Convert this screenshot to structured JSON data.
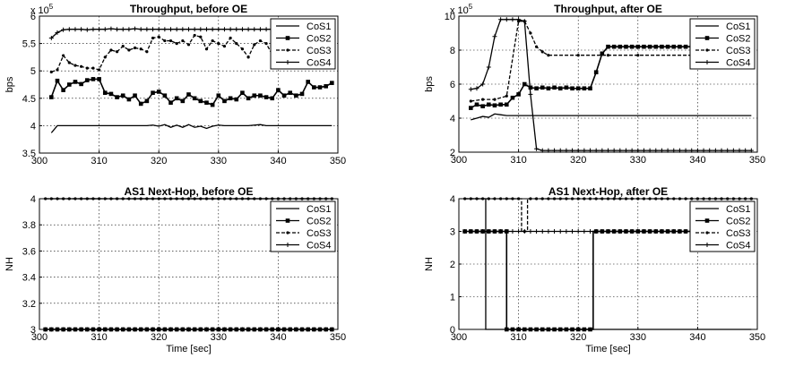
{
  "chart_data": [
    {
      "type": "line",
      "title": "Throughput, before OE",
      "xlabel": "",
      "ylabel": "bps",
      "exponent_label": "x 10",
      "exponent_power": "5",
      "xlim": [
        300,
        350
      ],
      "ylim": [
        3.5,
        6
      ],
      "xticks": [
        300,
        310,
        320,
        330,
        340,
        350
      ],
      "yticks": [
        3.5,
        4,
        4.5,
        5,
        5.5,
        6
      ],
      "xtick_labels": [
        "300",
        "310",
        "320",
        "330",
        "340",
        "350"
      ],
      "ytick_labels": [
        "3.5",
        "4",
        "4.5",
        "5",
        "5.5",
        "6"
      ],
      "grid": true,
      "legend": "top-right",
      "series": [
        {
          "name": "CoS1",
          "marker": "none",
          "dash": "solid",
          "x": [
            302,
            303,
            305,
            310,
            318,
            319,
            320,
            321,
            322,
            323,
            324,
            325,
            326,
            327,
            328,
            329,
            330,
            331,
            335,
            337,
            338,
            339,
            349
          ],
          "y": [
            3.87,
            4.0,
            4.0,
            4.0,
            4.0,
            4.01,
            3.99,
            4.02,
            3.97,
            4.01,
            3.97,
            4.02,
            3.97,
            3.99,
            3.95,
            3.99,
            4.01,
            4.0,
            4.0,
            4.02,
            4.0,
            4.0,
            4.0
          ]
        },
        {
          "name": "CoS2",
          "marker": "square",
          "dash": "solid",
          "x": [
            302,
            303,
            304,
            305,
            306,
            307,
            308,
            309,
            310,
            311,
            312,
            313,
            314,
            315,
            316,
            317,
            318,
            319,
            320,
            321,
            322,
            323,
            324,
            325,
            326,
            327,
            328,
            329,
            330,
            331,
            332,
            333,
            334,
            335,
            336,
            337,
            338,
            339,
            340,
            341,
            342,
            343,
            344,
            345,
            346,
            347,
            348,
            349
          ],
          "y": [
            4.52,
            4.82,
            4.65,
            4.75,
            4.8,
            4.76,
            4.83,
            4.85,
            4.85,
            4.6,
            4.58,
            4.52,
            4.55,
            4.48,
            4.55,
            4.4,
            4.45,
            4.6,
            4.62,
            4.55,
            4.42,
            4.5,
            4.45,
            4.57,
            4.5,
            4.45,
            4.42,
            4.38,
            4.55,
            4.45,
            4.5,
            4.48,
            4.6,
            4.5,
            4.55,
            4.55,
            4.52,
            4.5,
            4.65,
            4.55,
            4.6,
            4.55,
            4.58,
            4.8,
            4.7,
            4.7,
            4.72,
            4.78
          ]
        },
        {
          "name": "CoS3",
          "marker": "dot",
          "dash": "dashed",
          "x": [
            302,
            303,
            304,
            305,
            306,
            307,
            308,
            309,
            310,
            311,
            312,
            313,
            314,
            315,
            316,
            317,
            318,
            319,
            320,
            321,
            322,
            323,
            324,
            325,
            326,
            327,
            328,
            329,
            330,
            331,
            332,
            333,
            334,
            335,
            336,
            337,
            338,
            339,
            340
          ],
          "y": [
            4.98,
            5.02,
            5.28,
            5.15,
            5.1,
            5.08,
            5.05,
            5.05,
            5.02,
            5.25,
            5.38,
            5.35,
            5.45,
            5.38,
            5.42,
            5.4,
            5.35,
            5.6,
            5.62,
            5.55,
            5.55,
            5.5,
            5.55,
            5.48,
            5.65,
            5.62,
            5.4,
            5.55,
            5.5,
            5.45,
            5.6,
            5.5,
            5.4,
            5.25,
            5.48,
            5.55,
            5.5,
            5.3,
            5.4
          ]
        },
        {
          "name": "CoS4",
          "marker": "plus",
          "dash": "solid",
          "x": [
            302,
            303,
            304,
            305,
            306,
            307,
            308,
            309,
            310,
            311,
            312,
            313,
            314,
            315,
            316,
            317,
            318,
            319,
            320,
            321,
            322,
            323,
            324,
            325,
            326,
            327,
            328,
            329,
            330,
            331,
            332,
            333,
            334,
            335,
            336,
            337,
            338,
            339,
            340,
            341
          ],
          "y": [
            5.6,
            5.7,
            5.75,
            5.76,
            5.76,
            5.76,
            5.75,
            5.76,
            5.76,
            5.76,
            5.77,
            5.76,
            5.76,
            5.76,
            5.77,
            5.76,
            5.76,
            5.76,
            5.76,
            5.76,
            5.76,
            5.76,
            5.76,
            5.76,
            5.76,
            5.76,
            5.76,
            5.76,
            5.76,
            5.76,
            5.76,
            5.76,
            5.76,
            5.76,
            5.76,
            5.76,
            5.76,
            5.76,
            5.76,
            5.72
          ]
        }
      ]
    },
    {
      "type": "line",
      "title": "Throughput, after OE",
      "xlabel": "",
      "ylabel": "bps",
      "exponent_label": "x 10",
      "exponent_power": "5",
      "xlim": [
        300,
        350
      ],
      "ylim": [
        2,
        10
      ],
      "xticks": [
        300,
        310,
        320,
        330,
        340,
        350
      ],
      "yticks": [
        2,
        4,
        6,
        8,
        10
      ],
      "xtick_labels": [
        "300",
        "310",
        "320",
        "330",
        "340",
        "350"
      ],
      "ytick_labels": [
        "2",
        "4",
        "6",
        "8",
        "10"
      ],
      "grid": true,
      "legend": "top-right",
      "series": [
        {
          "name": "CoS1",
          "marker": "none",
          "dash": "solid",
          "x": [
            302,
            303,
            304,
            305,
            306,
            307,
            308,
            309,
            310,
            311,
            312,
            313,
            314,
            315,
            320,
            330,
            340,
            349
          ],
          "y": [
            3.9,
            4.0,
            4.1,
            4.05,
            4.25,
            4.2,
            4.15,
            4.15,
            4.15,
            4.15,
            4.15,
            4.15,
            4.15,
            4.15,
            4.15,
            4.15,
            4.15,
            4.15
          ]
        },
        {
          "name": "CoS2",
          "marker": "square",
          "dash": "solid",
          "x": [
            302,
            303,
            304,
            305,
            306,
            307,
            308,
            309,
            310,
            311,
            312,
            313,
            314,
            315,
            316,
            317,
            318,
            319,
            320,
            321,
            322,
            323,
            324,
            325,
            326,
            327,
            328,
            329,
            330,
            331,
            332,
            333,
            334,
            335,
            336,
            337,
            338,
            339,
            340,
            341,
            342,
            343,
            344,
            345,
            346,
            347,
            348,
            349
          ],
          "y": [
            4.6,
            4.8,
            4.7,
            4.8,
            4.75,
            4.8,
            4.8,
            5.2,
            5.4,
            6.0,
            5.8,
            5.75,
            5.8,
            5.75,
            5.8,
            5.75,
            5.8,
            5.75,
            5.75,
            5.75,
            5.75,
            6.7,
            7.8,
            8.2,
            8.2,
            8.2,
            8.2,
            8.2,
            8.2,
            8.2,
            8.2,
            8.2,
            8.2,
            8.2,
            8.2,
            8.2,
            8.2,
            8.2,
            8.2,
            8.2,
            8.2,
            8.2,
            8.2,
            8.2,
            8.2,
            8.2,
            8.2,
            8.2
          ]
        },
        {
          "name": "CoS3",
          "marker": "dot",
          "dash": "dashed",
          "x": [
            302,
            304,
            306,
            308,
            310,
            311,
            312,
            313,
            314,
            315,
            320,
            325,
            330,
            340,
            349
          ],
          "y": [
            5.0,
            5.1,
            5.1,
            5.3,
            9.7,
            9.7,
            9.0,
            8.2,
            7.9,
            7.7,
            7.7,
            7.7,
            7.7,
            7.7,
            7.7
          ]
        },
        {
          "name": "CoS4",
          "marker": "plus",
          "dash": "solid",
          "x": [
            302,
            303,
            304,
            305,
            306,
            307,
            308,
            309,
            310,
            311,
            312,
            313,
            314,
            315,
            316,
            317,
            318,
            319,
            320,
            321,
            322,
            323,
            324,
            325,
            326,
            327,
            328,
            329,
            330,
            331,
            332,
            333,
            334,
            335,
            336,
            337,
            338,
            339,
            340,
            341,
            342,
            343,
            344,
            345,
            346,
            347,
            348,
            349
          ],
          "y": [
            5.7,
            5.75,
            6.0,
            7.0,
            8.8,
            9.8,
            9.8,
            9.8,
            9.8,
            9.7,
            5.4,
            2.2,
            2.1,
            2.1,
            2.1,
            2.1,
            2.1,
            2.1,
            2.1,
            2.1,
            2.1,
            2.1,
            2.1,
            2.1,
            2.1,
            2.1,
            2.1,
            2.1,
            2.1,
            2.1,
            2.1,
            2.1,
            2.1,
            2.1,
            2.1,
            2.1,
            2.1,
            2.1,
            2.1,
            2.1,
            2.1,
            2.1,
            2.1,
            2.1,
            2.1,
            2.1,
            2.1,
            2.1
          ]
        }
      ]
    },
    {
      "type": "line",
      "title": "AS1 Next-Hop, before OE",
      "xlabel": "Time [sec]",
      "ylabel": "NH",
      "xlim": [
        300,
        350
      ],
      "ylim": [
        3,
        4
      ],
      "xticks": [
        300,
        310,
        320,
        330,
        340,
        350
      ],
      "yticks": [
        3,
        3.2,
        3.4,
        3.6,
        3.8,
        4
      ],
      "xtick_labels": [
        "300",
        "310",
        "320",
        "330",
        "340",
        "350"
      ],
      "ytick_labels": [
        "3",
        "3.2",
        "3.4",
        "3.6",
        "3.8",
        "4"
      ],
      "grid": true,
      "legend": "top-right",
      "series": [
        {
          "name": "CoS1",
          "marker": "none",
          "dash": "solid",
          "x": [
            301,
            349
          ],
          "y": [
            4,
            4
          ]
        },
        {
          "name": "CoS2",
          "marker": "square",
          "dash": "solid",
          "x": [
            301,
            349
          ],
          "y": [
            3,
            3
          ],
          "marker_every": 1
        },
        {
          "name": "CoS3",
          "marker": "dot",
          "dash": "dashed",
          "x": [
            301,
            349
          ],
          "y": [
            4,
            4
          ],
          "marker_every": 1
        },
        {
          "name": "CoS4",
          "marker": "plus",
          "dash": "solid",
          "x": [
            301,
            349
          ],
          "y": [
            3,
            3
          ],
          "marker_every": 1
        }
      ]
    },
    {
      "type": "line",
      "title": "AS1 Next-Hop, after OE",
      "xlabel": "Time [sec]",
      "ylabel": "NH",
      "xlim": [
        300,
        350
      ],
      "ylim": [
        0,
        4
      ],
      "xticks": [
        300,
        310,
        320,
        330,
        340,
        350
      ],
      "yticks": [
        0,
        1,
        2,
        3,
        4
      ],
      "xtick_labels": [
        "300",
        "310",
        "320",
        "330",
        "340",
        "350"
      ],
      "ytick_labels": [
        "0",
        "1",
        "2",
        "3",
        "4"
      ],
      "grid": true,
      "legend": "top-right",
      "series": [
        {
          "name": "CoS1",
          "marker": "none",
          "dash": "solid",
          "x": [
            301,
            304.5,
            304.5,
            349
          ],
          "y": [
            4,
            4,
            0,
            0
          ]
        },
        {
          "name": "CoS2",
          "marker": "square",
          "dash": "solid",
          "x": [
            301,
            308,
            308,
            322.5,
            322.5,
            349
          ],
          "y": [
            3,
            3,
            0,
            0,
            3,
            3
          ],
          "marker_every": 1
        },
        {
          "name": "CoS3",
          "marker": "dot",
          "dash": "dashed",
          "x": [
            301,
            310.5,
            310.5,
            311.5,
            311.5,
            349
          ],
          "y": [
            4,
            4,
            3,
            3,
            4,
            4
          ],
          "marker_every": 1
        },
        {
          "name": "CoS4",
          "marker": "plus",
          "dash": "solid",
          "x": [
            301,
            307.5,
            307.5,
            349
          ],
          "y": [
            3,
            3,
            3,
            3
          ],
          "marker_every": 1
        }
      ]
    }
  ]
}
